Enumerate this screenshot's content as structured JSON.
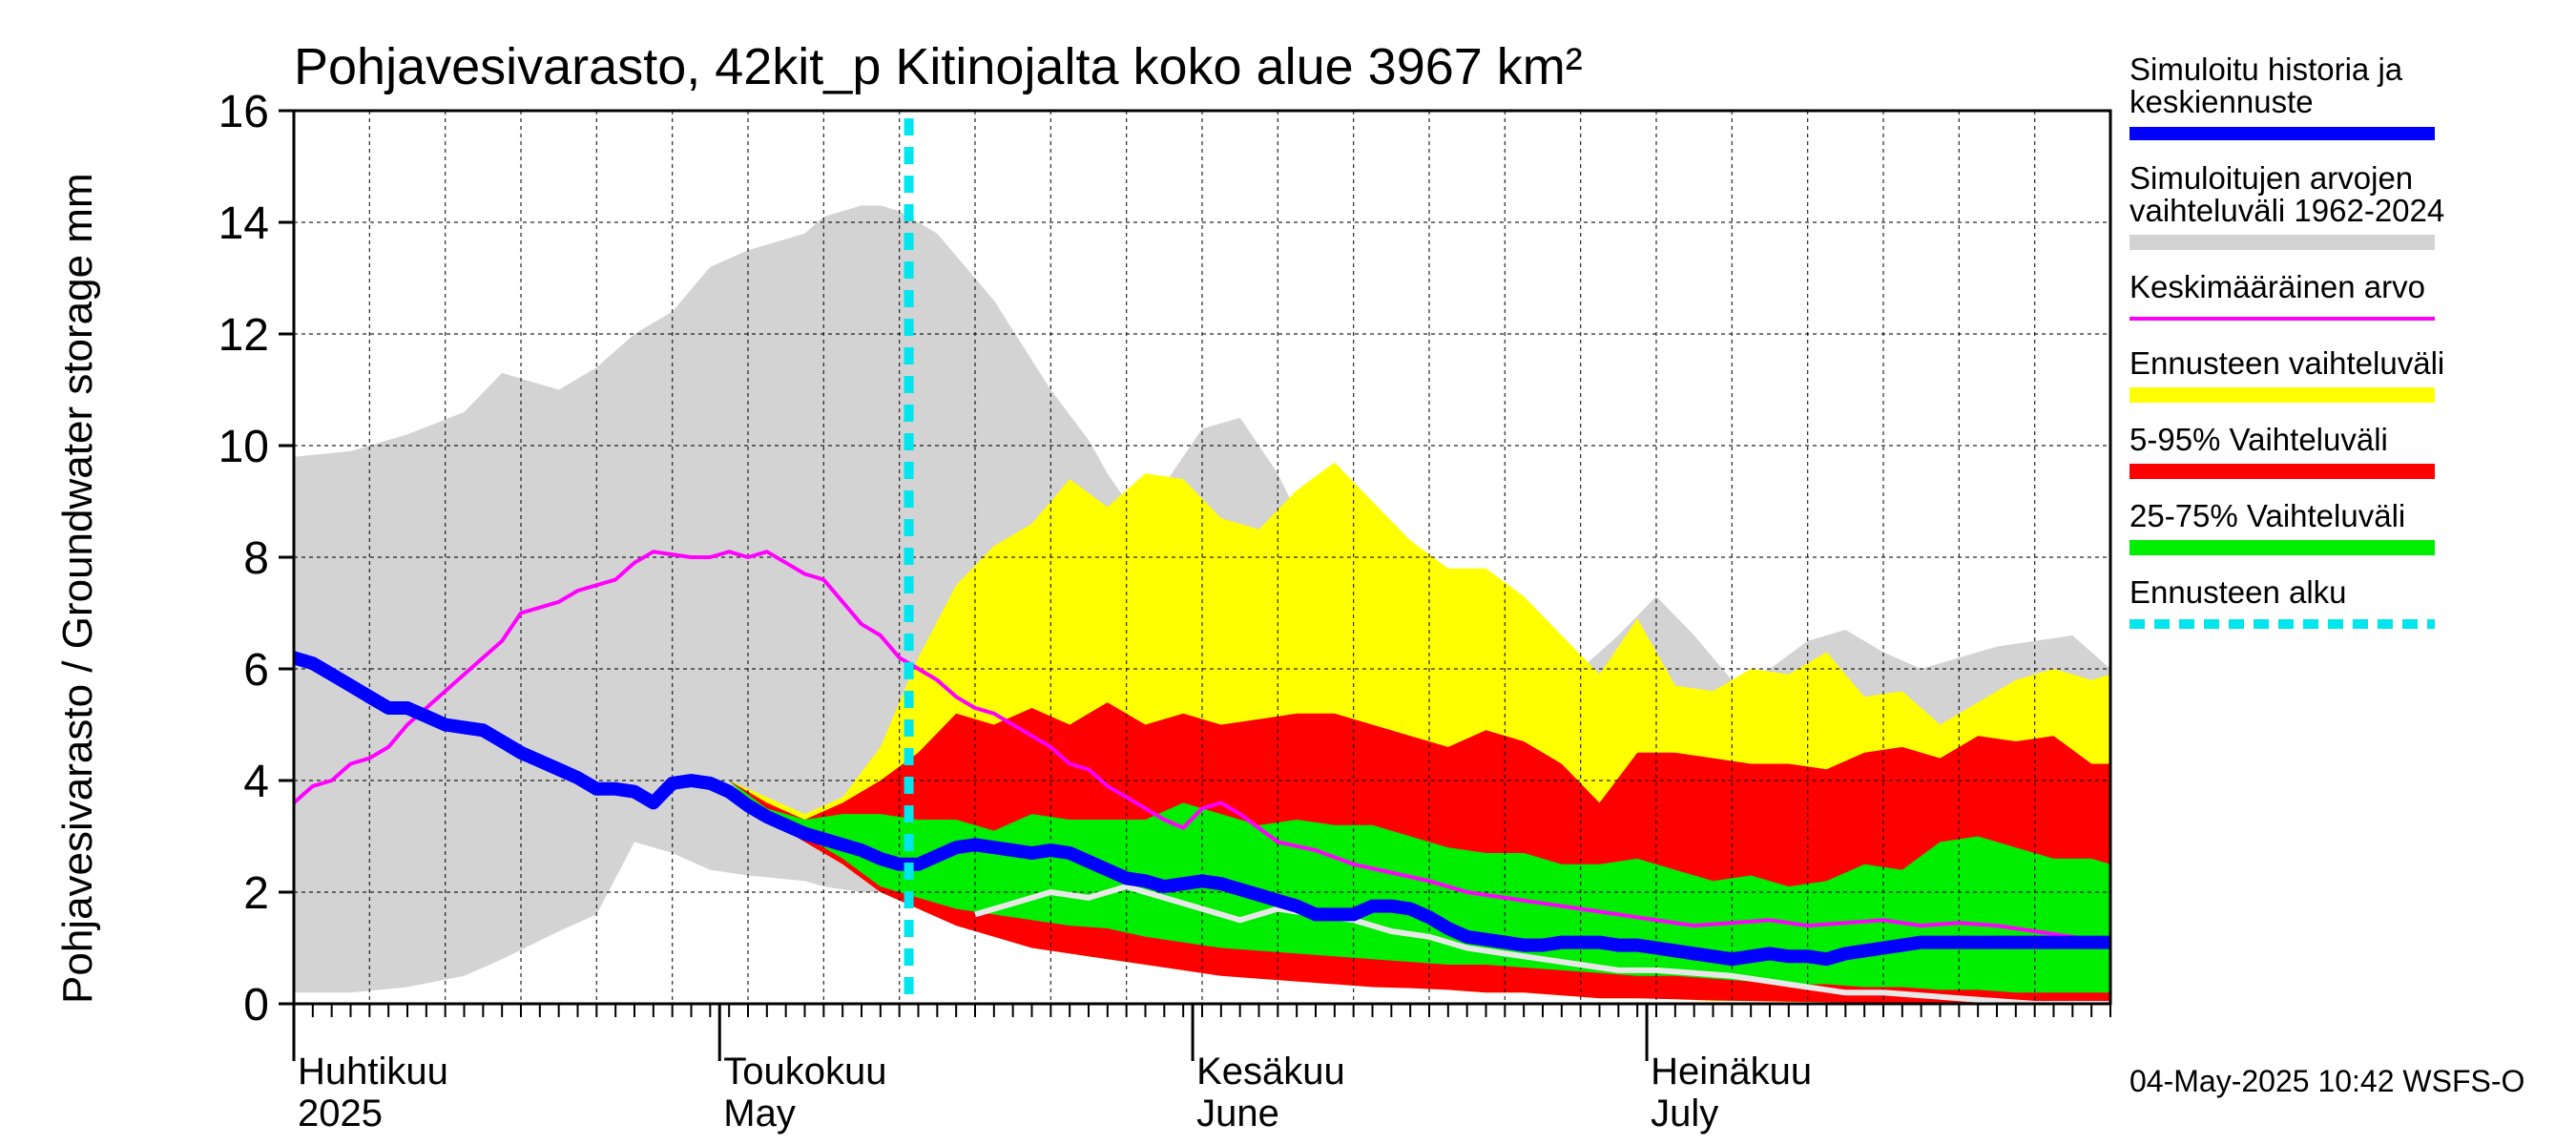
{
  "chart_data": {
    "type": "area",
    "title": "Pohjavesivarasto, 42kit_p Kitinojalta koko alue 3967 km²",
    "ylabel": "Pohjavesivarasto / Groundwater storage   mm",
    "ylim": [
      0,
      16
    ],
    "yticks": [
      0,
      2,
      4,
      6,
      8,
      10,
      12,
      14,
      16
    ],
    "xlim": [
      0,
      96
    ],
    "forecast_start_day": 32.5,
    "months": [
      {
        "day": 0,
        "fi": "Huhtikuu",
        "en": "2025"
      },
      {
        "day": 22.5,
        "fi": "Toukokuu",
        "en": "May"
      },
      {
        "day": 47.5,
        "fi": "Kesäkuu",
        "en": "June"
      },
      {
        "day": 71.5,
        "fi": "Heinäkuu",
        "en": "July"
      }
    ],
    "series": {
      "hist_range": {
        "name": "Simuloitujen arvojen vaihteluväli 1962-2024",
        "color": "#d3d3d3",
        "x": [
          0,
          3,
          6,
          9,
          11,
          14,
          16,
          18,
          20,
          22,
          24,
          27,
          28,
          30,
          31,
          32,
          34,
          36,
          37,
          40,
          42,
          43,
          44,
          46,
          48,
          50,
          52,
          54,
          55,
          58,
          60,
          62,
          65,
          68,
          70,
          72,
          74,
          76,
          78,
          80,
          82,
          84,
          86,
          88,
          90,
          92,
          94,
          96
        ],
        "upper": [
          9.8,
          9.9,
          10.2,
          10.6,
          11.3,
          11.0,
          11.4,
          12.0,
          12.4,
          13.2,
          13.5,
          13.8,
          14.1,
          14.3,
          14.3,
          14.2,
          13.8,
          13.0,
          12.6,
          11.0,
          10.1,
          9.5,
          9.0,
          9.3,
          10.3,
          10.5,
          9.5,
          8.1,
          8.1,
          8.2,
          7.5,
          7.2,
          6.5,
          6.0,
          6.6,
          7.3,
          6.6,
          5.8,
          6.0,
          6.5,
          6.7,
          6.3,
          6.0,
          6.2,
          6.4,
          6.5,
          6.6,
          6.0
        ],
        "lower": [
          0.2,
          0.2,
          0.3,
          0.5,
          0.8,
          1.3,
          1.6,
          2.9,
          2.7,
          2.4,
          2.3,
          2.2,
          2.1,
          2.0,
          2.0,
          2.2,
          2.3,
          2.2,
          2.0,
          1.6,
          1.5,
          1.4,
          1.2,
          1.1,
          1.0,
          0.9,
          0.8,
          0.6,
          0.55,
          0.4,
          0.35,
          0.3,
          0.25,
          0.2,
          0.15,
          0.1,
          0.1,
          0.05,
          0.05,
          0.03,
          0.02,
          0.02,
          0.01,
          0.01,
          0.01,
          0.0,
          0.0,
          0.0
        ]
      },
      "yellow": {
        "name": "Ennusteen vaihteluväli",
        "color": "#ffff00",
        "x": [
          23,
          25,
          27,
          29,
          31,
          33,
          35,
          37,
          39,
          41,
          43,
          45,
          47,
          49,
          51,
          53,
          55,
          57,
          59,
          61,
          63,
          65,
          67,
          69,
          71,
          73,
          75,
          77,
          79,
          81,
          83,
          85,
          87,
          89,
          91,
          93,
          95,
          96
        ],
        "upper": [
          4.0,
          3.7,
          3.4,
          3.7,
          4.6,
          6.2,
          7.5,
          8.2,
          8.6,
          9.4,
          8.9,
          9.5,
          9.4,
          8.7,
          8.5,
          9.2,
          9.7,
          9.0,
          8.3,
          7.8,
          7.8,
          7.3,
          6.6,
          5.9,
          6.9,
          5.7,
          5.6,
          6.0,
          5.9,
          6.3,
          5.5,
          5.6,
          5.0,
          5.4,
          5.8,
          6.0,
          5.8,
          5.9
        ],
        "lower": [
          4.0,
          3.3,
          3.0,
          2.5,
          2.0,
          1.8,
          1.5,
          1.3,
          1.1,
          0.9,
          0.8,
          0.7,
          0.6,
          0.55,
          0.5,
          0.45,
          0.4,
          0.35,
          0.3,
          0.25,
          0.2,
          0.2,
          0.15,
          0.1,
          0.1,
          0.08,
          0.05,
          0.05,
          0.03,
          0.03,
          0.02,
          0.02,
          0.01,
          0.01,
          0.0,
          0.0,
          0.0,
          0.0
        ]
      },
      "red": {
        "name": "5-95% Vaihteluväli",
        "color": "#ff0000",
        "x": [
          23,
          25,
          27,
          29,
          31,
          33,
          35,
          37,
          39,
          41,
          43,
          45,
          47,
          49,
          51,
          53,
          55,
          57,
          59,
          61,
          63,
          65,
          67,
          69,
          71,
          73,
          75,
          77,
          79,
          81,
          83,
          85,
          87,
          89,
          91,
          93,
          95,
          96
        ],
        "upper": [
          4.0,
          3.6,
          3.3,
          3.6,
          4.0,
          4.5,
          5.2,
          5.0,
          5.3,
          5.0,
          5.4,
          5.0,
          5.2,
          5.0,
          5.1,
          5.2,
          5.2,
          5.0,
          4.8,
          4.6,
          4.9,
          4.7,
          4.3,
          3.6,
          4.5,
          4.5,
          4.4,
          4.3,
          4.3,
          4.2,
          4.5,
          4.6,
          4.4,
          4.8,
          4.7,
          4.8,
          4.3,
          4.3
        ],
        "lower": [
          4.0,
          3.3,
          2.9,
          2.5,
          2.0,
          1.7,
          1.4,
          1.2,
          1.0,
          0.9,
          0.8,
          0.7,
          0.6,
          0.5,
          0.45,
          0.4,
          0.35,
          0.3,
          0.28,
          0.25,
          0.2,
          0.2,
          0.15,
          0.1,
          0.1,
          0.08,
          0.06,
          0.05,
          0.04,
          0.03,
          0.02,
          0.02,
          0.01,
          0.01,
          0.01,
          0.02,
          0.0,
          0.0
        ]
      },
      "green": {
        "name": "25-75% Vaihteluväli",
        "color": "#00ee00",
        "x": [
          23,
          25,
          27,
          29,
          31,
          33,
          35,
          37,
          39,
          41,
          43,
          45,
          47,
          49,
          51,
          53,
          55,
          57,
          59,
          61,
          63,
          65,
          67,
          69,
          71,
          73,
          75,
          77,
          79,
          81,
          83,
          85,
          87,
          89,
          91,
          93,
          95,
          96
        ],
        "upper": [
          4.0,
          3.5,
          3.3,
          3.4,
          3.4,
          3.3,
          3.3,
          3.1,
          3.4,
          3.3,
          3.3,
          3.3,
          3.6,
          3.4,
          3.2,
          3.3,
          3.2,
          3.2,
          3.0,
          2.8,
          2.7,
          2.7,
          2.5,
          2.5,
          2.6,
          2.4,
          2.2,
          2.3,
          2.1,
          2.2,
          2.5,
          2.4,
          2.9,
          3.0,
          2.8,
          2.6,
          2.6,
          2.5
        ],
        "lower": [
          4.0,
          3.3,
          3.0,
          2.6,
          2.1,
          1.9,
          1.7,
          1.6,
          1.5,
          1.4,
          1.35,
          1.2,
          1.1,
          1.0,
          0.95,
          0.9,
          0.85,
          0.8,
          0.75,
          0.7,
          0.7,
          0.65,
          0.6,
          0.55,
          0.5,
          0.5,
          0.45,
          0.4,
          0.35,
          0.35,
          0.3,
          0.3,
          0.25,
          0.25,
          0.2,
          0.2,
          0.2,
          0.2
        ]
      },
      "hist_min_line": {
        "name": "Simuloitujen arvojen minimi (white line)",
        "color": "#e8e8e8",
        "x": [
          36,
          38,
          40,
          42,
          44,
          46,
          48,
          50,
          52,
          54,
          56,
          58,
          60,
          62,
          64,
          66,
          68,
          70,
          72,
          74,
          76,
          78,
          80,
          82,
          84,
          86,
          88,
          90,
          92,
          94,
          96
        ],
        "values": [
          1.6,
          1.8,
          2.0,
          1.9,
          2.1,
          1.9,
          1.7,
          1.5,
          1.7,
          1.6,
          1.5,
          1.3,
          1.2,
          1.0,
          0.9,
          0.8,
          0.7,
          0.6,
          0.6,
          0.55,
          0.5,
          0.4,
          0.3,
          0.2,
          0.2,
          0.15,
          0.1,
          0.05,
          0.0,
          0.0,
          0.0
        ]
      },
      "mean": {
        "name": "Keskimääräinen arvo",
        "color": "#ff00ff",
        "x": [
          0,
          1,
          2,
          3,
          4,
          5,
          6,
          7,
          8,
          9,
          10,
          11,
          12,
          13,
          14,
          15,
          16,
          17,
          18,
          19,
          20,
          21,
          22,
          23,
          24,
          25,
          26,
          27,
          28,
          29,
          30,
          31,
          32,
          33,
          34,
          35,
          36,
          37,
          38,
          39,
          40,
          41,
          42,
          43,
          44,
          45,
          46,
          47,
          48,
          49,
          50,
          52,
          54,
          56,
          58,
          60,
          62,
          64,
          66,
          68,
          70,
          72,
          74,
          76,
          78,
          80,
          82,
          84,
          86,
          88,
          90,
          92,
          94,
          96
        ],
        "values": [
          3.6,
          3.9,
          4.0,
          4.3,
          4.4,
          4.6,
          5.0,
          5.3,
          5.6,
          5.9,
          6.2,
          6.5,
          7.0,
          7.1,
          7.2,
          7.4,
          7.5,
          7.6,
          7.9,
          8.1,
          8.05,
          8.0,
          8.0,
          8.1,
          8.0,
          8.1,
          7.9,
          7.7,
          7.6,
          7.2,
          6.8,
          6.6,
          6.2,
          6.0,
          5.8,
          5.5,
          5.3,
          5.2,
          5.0,
          4.8,
          4.6,
          4.3,
          4.2,
          3.9,
          3.7,
          3.5,
          3.3,
          3.15,
          3.5,
          3.6,
          3.4,
          2.9,
          2.75,
          2.5,
          2.35,
          2.2,
          2.0,
          1.9,
          1.8,
          1.7,
          1.6,
          1.5,
          1.4,
          1.45,
          1.5,
          1.4,
          1.45,
          1.5,
          1.4,
          1.45,
          1.4,
          1.3,
          1.2,
          1.1
        ]
      },
      "median": {
        "name": "Simuloitu historia ja keskiennuste",
        "color": "#0000ff",
        "x": [
          0,
          1,
          2,
          3,
          4,
          5,
          6,
          7,
          8,
          9,
          10,
          11,
          12,
          13,
          14,
          15,
          16,
          17,
          18,
          19,
          20,
          21,
          22,
          23,
          24,
          25,
          26,
          27,
          28,
          29,
          30,
          31,
          32,
          33,
          34,
          35,
          36,
          37,
          38,
          39,
          40,
          41,
          42,
          43,
          44,
          45,
          46,
          47,
          48,
          49,
          50,
          51,
          52,
          53,
          54,
          55,
          56,
          57,
          58,
          59,
          60,
          61,
          62,
          63,
          64,
          65,
          66,
          67,
          68,
          69,
          70,
          71,
          72,
          73,
          74,
          75,
          76,
          77,
          78,
          79,
          80,
          81,
          82,
          83,
          84,
          85,
          86,
          87,
          88,
          89,
          90,
          91,
          92,
          93,
          94,
          95,
          96
        ],
        "values": [
          6.2,
          6.1,
          5.9,
          5.7,
          5.5,
          5.3,
          5.3,
          5.15,
          5.0,
          4.95,
          4.9,
          4.7,
          4.5,
          4.35,
          4.2,
          4.05,
          3.85,
          3.85,
          3.8,
          3.6,
          3.95,
          4.0,
          3.95,
          3.8,
          3.55,
          3.35,
          3.2,
          3.05,
          2.95,
          2.85,
          2.75,
          2.6,
          2.5,
          2.5,
          2.65,
          2.8,
          2.85,
          2.8,
          2.75,
          2.7,
          2.75,
          2.7,
          2.55,
          2.4,
          2.25,
          2.2,
          2.1,
          2.15,
          2.2,
          2.15,
          2.05,
          1.95,
          1.85,
          1.75,
          1.6,
          1.6,
          1.6,
          1.75,
          1.75,
          1.7,
          1.55,
          1.35,
          1.2,
          1.15,
          1.1,
          1.05,
          1.05,
          1.1,
          1.1,
          1.1,
          1.05,
          1.05,
          1.0,
          0.95,
          0.9,
          0.85,
          0.8,
          0.85,
          0.9,
          0.85,
          0.85,
          0.8,
          0.9,
          0.95,
          1.0,
          1.05,
          1.1,
          1.1,
          1.1,
          1.1,
          1.1,
          1.1,
          1.1,
          1.1,
          1.1,
          1.1,
          1.1
        ]
      }
    },
    "legend": [
      {
        "key": "median",
        "label1": "Simuloitu historia ja",
        "label2": "keskiennuste",
        "color": "#0000ff",
        "style": "thick"
      },
      {
        "key": "hist_range",
        "label1": "Simuloitujen arvojen",
        "label2": "vaihteluväli 1962-2024",
        "color": "#d3d3d3",
        "style": "bar"
      },
      {
        "key": "mean",
        "label1": "Keskimääräinen arvo",
        "label2": "",
        "color": "#ff00ff",
        "style": "thin"
      },
      {
        "key": "yellow",
        "label1": "Ennusteen vaihteluväli",
        "label2": "",
        "color": "#ffff00",
        "style": "bar"
      },
      {
        "key": "red",
        "label1": "5-95% Vaihteluväli",
        "label2": "",
        "color": "#ff0000",
        "style": "bar"
      },
      {
        "key": "green",
        "label1": "25-75% Vaihteluväli",
        "label2": "",
        "color": "#00ee00",
        "style": "bar"
      },
      {
        "key": "forecast_start",
        "label1": "Ennusteen alku",
        "label2": "",
        "color": "#00e5ee",
        "style": "dashed"
      }
    ],
    "footer": "04-May-2025 10:42 WSFS-O"
  }
}
